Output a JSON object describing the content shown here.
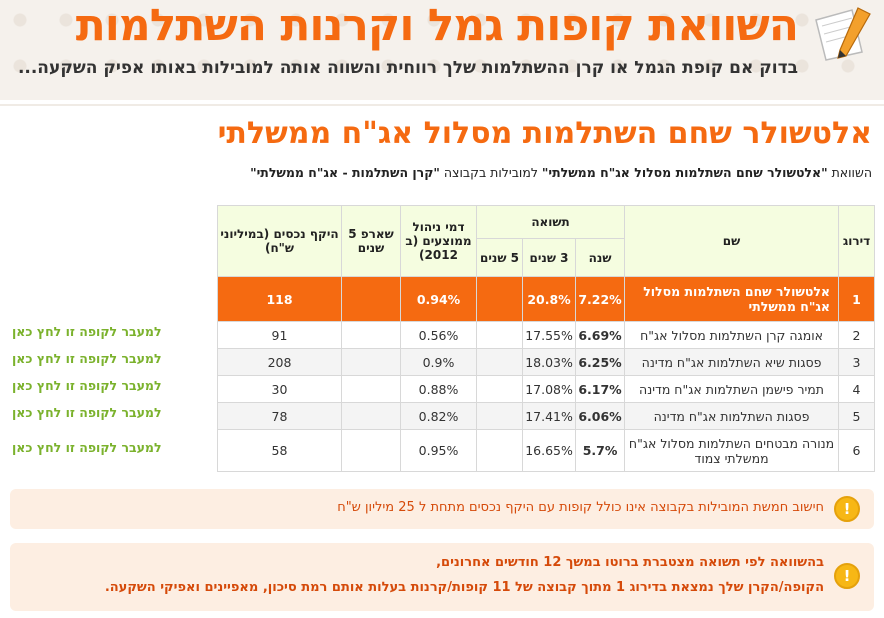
{
  "header": {
    "title": "השוואת קופות גמל וקרנות השתלמות",
    "subtitle": "בדוק אם קופת הגמל או קרן ההשתלמות שלך רווחית והשווה אותה למובילות באותו אפיק השקעה..."
  },
  "section": {
    "title": "אלטשולר שחם השתלמות מסלול אג\"ח ממשלתי",
    "compare_prefix": "השוואת ",
    "compare_fund": "\"אלטשולר שחם השתלמות מסלול אג\"ח ממשלתי\"",
    "compare_middle": " למובילות בקבוצה ",
    "compare_group": "\"קרן השתלמות - אג\"ח ממשלתי\""
  },
  "table": {
    "headers": {
      "rank": "דירוג",
      "name": "שם",
      "return": "תשואה",
      "year": "שנה",
      "three_years": "3 שנים",
      "five_years": "5 שנים",
      "fees": "דמי ניהול ממוצעים (ב 2012)",
      "sharpe": "שארפ 5 שנים",
      "assets": "היקף נכסים (במיליוני ש\"ח)"
    },
    "rows": [
      {
        "rank": "1",
        "name": "אלטשולר שחם השתלמות מסלול אג\"ח ממשלתי",
        "year": "7.22%",
        "three": "20.8%",
        "five": "",
        "fees": "0.94%",
        "sharpe": "",
        "assets": "118",
        "link": ""
      },
      {
        "rank": "2",
        "name": "אומגה קרן השתלמות מסלול אג\"ח",
        "year": "6.69%",
        "three": "17.55%",
        "five": "",
        "fees": "0.56%",
        "sharpe": "",
        "assets": "91",
        "link": "למעבר לקופה זו לחץ כאן"
      },
      {
        "rank": "3",
        "name": "פסגות שיא השתלמות אג\"ח מדינה",
        "year": "6.25%",
        "three": "18.03%",
        "five": "",
        "fees": "0.9%",
        "sharpe": "",
        "assets": "208",
        "link": "למעבר לקופה זו לחץ כאן"
      },
      {
        "rank": "4",
        "name": "תמיר פישמן השתלמות אג\"ח מדינה",
        "year": "6.17%",
        "three": "17.08%",
        "five": "",
        "fees": "0.88%",
        "sharpe": "",
        "assets": "30",
        "link": "למעבר לקופה זו לחץ כאן"
      },
      {
        "rank": "5",
        "name": "פסגות השתלמות אג\"ח מדינה",
        "year": "6.06%",
        "three": "17.41%",
        "five": "",
        "fees": "0.82%",
        "sharpe": "",
        "assets": "78",
        "link": "למעבר לקופה זו לחץ כאן"
      },
      {
        "rank": "6",
        "name": "מנורה מבטחים השתלמות מסלול אג\"ח ממשלתי צמוד",
        "year": "5.7%",
        "three": "16.65%",
        "five": "",
        "fees": "0.95%",
        "sharpe": "",
        "assets": "58",
        "link": "למעבר לקופה זו לחץ כאן"
      }
    ]
  },
  "notice1": {
    "icon": "exclamation-icon",
    "text": "חישוב חמשת המובילות בקבוצה אינו כולל קופות עם היקף נכסים מתחת ל 25 מיליון ש\"ח"
  },
  "notice2": {
    "icon": "exclamation-icon",
    "line1": "בהשוואה לפי תשואה מצטברת ברוטו במשך 12 חודשים אחרונים,",
    "line2": "הקופה/הקרן שלך נמצאת בדירוג 1 מתוך קבוצה של 11 קופות/קרנות בעלות אותם רמת סיכון, מאפיינים ואפיקי השקעה."
  },
  "colors": {
    "accent": "#f56a11",
    "green": "#7bb22d",
    "warning": "#f7b715",
    "notice_bg": "#fdeee2"
  }
}
